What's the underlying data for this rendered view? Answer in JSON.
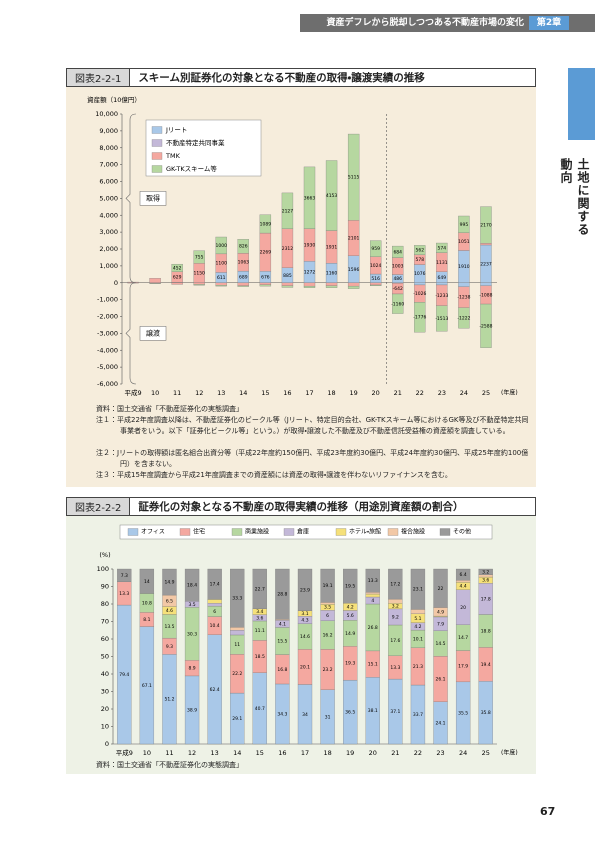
{
  "header": {
    "running_title": "資産デフレから脱却しつつある不動産市場の変化",
    "chapter": "第2章"
  },
  "side_tab": "土地に関する動向",
  "page_number": "67",
  "chart_data": [
    {
      "type": "bar",
      "stacked": true,
      "figure_label": "図表2-2-1",
      "title": "スキーム別証券化の対象となる不動産の取得・譲渡実績の推移",
      "y_label": "資産額（10億円）",
      "x_unit": "(年度)",
      "categories": [
        "平成9",
        "10",
        "11",
        "12",
        "13",
        "14",
        "15",
        "16",
        "17",
        "18",
        "19",
        "20",
        "21",
        "22",
        "23",
        "24",
        "25"
      ],
      "series": [
        {
          "name": "Jリート",
          "color": "#a9c8e8",
          "values": [
            0,
            0,
            0,
            0,
            611,
            689,
            676,
            885,
            1272,
            1160,
            1596,
            516,
            486,
            1076,
            649,
            1910,
            2237
          ],
          "disposals": [
            0,
            0,
            0,
            0,
            0,
            0,
            0,
            0,
            0,
            0,
            0,
            0,
            -24,
            -130,
            -131,
            -238,
            -175
          ]
        },
        {
          "name": "不動産特定共同事業",
          "color": "#c3b8d8",
          "values": [
            0,
            0,
            22,
            0,
            0,
            0,
            0,
            0,
            0,
            0,
            0,
            0,
            0,
            0,
            0,
            0,
            0
          ],
          "disposals": [
            0,
            0,
            0,
            0,
            0,
            0,
            0,
            0,
            0,
            0,
            0,
            0,
            0,
            0,
            0,
            0,
            0
          ]
        },
        {
          "name": "TMK",
          "color": "#f4a8a0",
          "values": [
            41,
            268,
            629,
            1150,
            1100,
            1063,
            2269,
            2312,
            1930,
            1931,
            2101,
            1024,
            1003,
            578,
            1131,
            1051,
            106
          ],
          "disposals": [
            -21,
            -27,
            -100,
            -100,
            -150,
            -180,
            -120,
            -180,
            -200,
            -180,
            -200,
            -134,
            -642,
            -1026,
            -1233,
            -1238,
            -1088
          ]
        },
        {
          "name": "GK-TKスキーム等",
          "color": "#b6d7a0",
          "values": [
            0,
            0,
            452,
            755,
            1000,
            826,
            1089,
            2127,
            3663,
            4153,
            5115,
            959,
            684,
            562,
            574,
            995,
            2170
          ],
          "disposals": [
            0,
            -27,
            0,
            -50,
            -50,
            -50,
            -80,
            -100,
            -100,
            -120,
            -150,
            -50,
            -1160,
            -1776,
            -1513,
            -1222,
            -2588
          ]
        }
      ],
      "ylim": [
        -6000,
        10000
      ],
      "yticks": [
        {
          "value": -6000,
          "label": "-6,000"
        },
        {
          "value": -5000,
          "label": "-5,000"
        },
        {
          "value": -4000,
          "label": "-4,000"
        },
        {
          "value": -3000,
          "label": "-3,000"
        },
        {
          "value": -2000,
          "label": "-2,000"
        },
        {
          "value": -1000,
          "label": "-1,000"
        },
        0,
        {
          "value": 1000,
          "label": "1,000"
        },
        {
          "value": 2000,
          "label": "2,000"
        },
        {
          "value": 3000,
          "label": "3,000"
        },
        {
          "value": 4000,
          "label": "4,000"
        },
        {
          "value": 5000,
          "label": "5,000"
        },
        {
          "value": 6000,
          "label": "6,000"
        },
        {
          "value": 7000,
          "label": "7,000"
        },
        {
          "value": 8000,
          "label": "8,000"
        },
        {
          "value": 9000,
          "label": "9,000"
        },
        {
          "value": 10000,
          "label": "10,000"
        }
      ],
      "grid": false,
      "annotations": [
        "取得",
        "譲渡"
      ],
      "source": "資料：国土交通省「不動産証券化の実態調査」",
      "notes": [
        "注１：平成22年度調査以降は、不動産証券化のビークル等（Jリート、特定目的会社、GK-TKスキーム等におけるGK等及び不動産特定共同事業者をいう。以下「証券化ビークル等」という。）が取得・譲渡した不動産及び不動産信託受益権の資産額を調査している。",
        "注２：Jリートの取得額は匿名組合出資分等（平成22年度約150億円、平成23年度約30億円、平成24年度約30億円、平成25年度約100億円）を含まない。",
        "注３：平成15年度調査から平成21年度調査までの資産額には資産の取得・譲渡を伴わないリファイナンスを含む。"
      ]
    },
    {
      "type": "bar",
      "stacked": true,
      "figure_label": "図表2-2-2",
      "title": "証券化の対象となる不動産の取得実績の推移（用途別資産額の割合）",
      "y_label": "(%)",
      "x_unit": "(年度)",
      "categories": [
        "平成9",
        "10",
        "11",
        "12",
        "13",
        "14",
        "15",
        "16",
        "17",
        "18",
        "19",
        "20",
        "21",
        "22",
        "23",
        "24",
        "25"
      ],
      "series": [
        {
          "name": "オフィス",
          "color": "#a9c8e8",
          "values": [
            79.4,
            67.1,
            51.2,
            38.9,
            62.4,
            29.1,
            40.7,
            34.3,
            34.0,
            31.0,
            36.5,
            38.1,
            37.1,
            33.7,
            24.1,
            35.5,
            35.8
          ]
        },
        {
          "name": "住宅",
          "color": "#f4a8a0",
          "values": [
            13.3,
            8.1,
            9.3,
            8.9,
            10.4,
            22.2,
            18.5,
            16.8,
            20.1,
            23.2,
            19.3,
            15.1,
            13.3,
            21.3,
            26.1,
            17.9,
            19.4
          ]
        },
        {
          "name": "商業施設",
          "color": "#b6d7a0",
          "values": [
            0,
            10.8,
            13.5,
            30.3,
            6.0,
            11.0,
            11.1,
            15.5,
            14.6,
            16.2,
            14.9,
            26.8,
            17.6,
            10.1,
            14.5,
            14.7,
            18.8
          ]
        },
        {
          "name": "倉庫",
          "color": "#c3b8d8",
          "values": [
            0,
            0,
            0,
            3.5,
            1.6,
            2.7,
            3.6,
            4.1,
            4.3,
            6.0,
            5.6,
            4.0,
            9.2,
            4.2,
            7.9,
            20.0,
            17.8
          ]
        },
        {
          "name": "ホテル・旅館",
          "color": "#f5e07a",
          "values": [
            0,
            0,
            4.6,
            0,
            2.2,
            0,
            3.4,
            0,
            3.1,
            3.5,
            4.2,
            1.7,
            3.2,
            5.1,
            0.5,
            4.4,
            3.6
          ]
        },
        {
          "name": "複合施設",
          "color": "#f2c8a6",
          "values": [
            0,
            0,
            6.5,
            0,
            0,
            1.7,
            0,
            0.5,
            0,
            1.0,
            0,
            1.0,
            2.4,
            2.5,
            4.9,
            1.1,
            1.4
          ]
        },
        {
          "name": "その他",
          "color": "#9a9a9a",
          "values": [
            7.3,
            14.0,
            14.9,
            18.4,
            17.4,
            33.3,
            22.7,
            28.8,
            23.9,
            19.1,
            19.5,
            13.3,
            17.2,
            23.1,
            22.0,
            6.4,
            3.2
          ]
        }
      ],
      "ylim": [
        0,
        100
      ],
      "yticks": [
        0,
        10,
        20,
        30,
        40,
        50,
        60,
        70,
        80,
        90,
        100
      ],
      "grid": false,
      "source": "資料：国土交通省「不動産証券化の実態調査」"
    }
  ]
}
